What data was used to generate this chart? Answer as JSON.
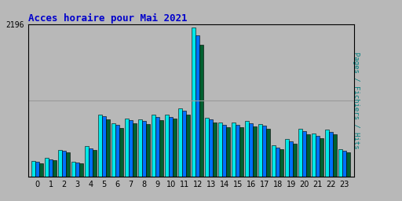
{
  "title": "Acces horaire pour Mai 2021",
  "title_color": "#0000cc",
  "ylabel": "Pages / Fichiers / Hits",
  "ylabel_color": "#008080",
  "background_color": "#b8b8b8",
  "plot_bg_color": "#b8b8b8",
  "ymax": 2196,
  "ytick_label": "2196",
  "hours": [
    0,
    1,
    2,
    3,
    4,
    5,
    6,
    7,
    8,
    9,
    10,
    11,
    12,
    13,
    14,
    15,
    16,
    17,
    18,
    19,
    20,
    21,
    22,
    23
  ],
  "hits": [
    230,
    270,
    390,
    220,
    440,
    900,
    770,
    840,
    830,
    890,
    890,
    980,
    2150,
    850,
    780,
    780,
    800,
    760,
    450,
    540,
    690,
    620,
    680,
    400
  ],
  "pages": [
    215,
    255,
    370,
    205,
    415,
    870,
    745,
    815,
    800,
    860,
    865,
    950,
    2040,
    825,
    752,
    752,
    772,
    735,
    425,
    510,
    660,
    590,
    648,
    375
  ],
  "fichiers": [
    200,
    238,
    348,
    192,
    390,
    830,
    700,
    775,
    755,
    815,
    835,
    900,
    1900,
    785,
    715,
    715,
    730,
    695,
    395,
    475,
    615,
    555,
    610,
    350
  ],
  "color_hits": "#00e8e8",
  "color_pages": "#0070ff",
  "color_fichiers": "#006030",
  "bar_width": 0.3,
  "grid_color": "#999999",
  "border_color": "#000000",
  "tick_fontsize": 7,
  "title_fontsize": 9,
  "ylabel_fontsize": 6.5
}
